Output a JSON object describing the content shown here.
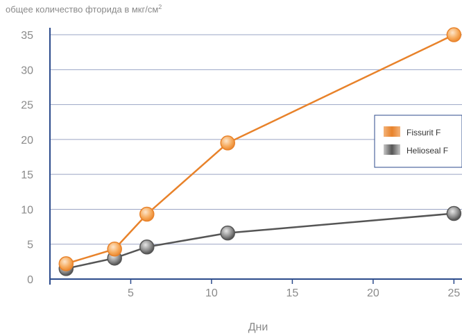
{
  "chart_data": {
    "type": "line",
    "title": "",
    "ylabel": "общее количество фторида в мкг/см",
    "ylabel_superscript": "2",
    "xlabel": "Дни",
    "xlim": [
      0,
      25.5
    ],
    "ylim": [
      0,
      36
    ],
    "xticks": [
      5,
      10,
      15,
      20,
      25
    ],
    "yticks": [
      0,
      5,
      10,
      15,
      20,
      25,
      30,
      35
    ],
    "grid": "horizontal",
    "legend_position": "right",
    "series": [
      {
        "name": "Fissurit F",
        "color": "#e8822a",
        "marker_fill": "#f6a95a",
        "x": [
          1,
          4,
          6,
          11,
          25
        ],
        "y": [
          2.2,
          4.3,
          9.3,
          19.5,
          35
        ]
      },
      {
        "name": "Helioseal F",
        "color": "#555555",
        "marker_fill": "#8a8a8a",
        "x": [
          1,
          4,
          6,
          11,
          25
        ],
        "y": [
          1.5,
          3.0,
          4.6,
          6.6,
          9.4
        ]
      }
    ]
  }
}
